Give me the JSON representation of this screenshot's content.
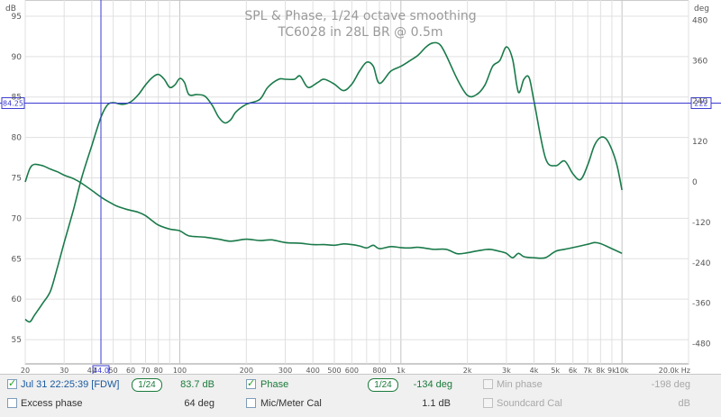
{
  "chart_data": {
    "type": "line",
    "title": "SPL & Phase, 1/24 octave smoothing",
    "subtitle": "TC6028 in 28L BR @ 0.5m",
    "x_scale": "log",
    "xlim": [
      20,
      20000
    ],
    "x_unit": "Hz",
    "left_axis": {
      "label": "dB",
      "ylim": [
        52,
        97
      ],
      "ticks": [
        55,
        60,
        65,
        70,
        75,
        80,
        85,
        90,
        95
      ]
    },
    "right_axis": {
      "label": "deg",
      "ylim": [
        -540,
        540
      ],
      "ticks": [
        480,
        360,
        240,
        120,
        0,
        -120,
        -240,
        -360,
        -480
      ]
    },
    "x_ticks": [
      {
        "v": 20,
        "label": "20"
      },
      {
        "v": 30,
        "label": "30"
      },
      {
        "v": 40,
        "label": "40"
      },
      {
        "v": 50,
        "label": "50"
      },
      {
        "v": 60,
        "label": "60"
      },
      {
        "v": 70,
        "label": "70"
      },
      {
        "v": 80,
        "label": "80"
      },
      {
        "v": 100,
        "label": "100"
      },
      {
        "v": 200,
        "label": "200"
      },
      {
        "v": 300,
        "label": "300"
      },
      {
        "v": 400,
        "label": "400"
      },
      {
        "v": 500,
        "label": "500"
      },
      {
        "v": 600,
        "label": "600"
      },
      {
        "v": 800,
        "label": "800"
      },
      {
        "v": 1000,
        "label": "1k"
      },
      {
        "v": 2000,
        "label": "2k"
      },
      {
        "v": 3000,
        "label": "3k"
      },
      {
        "v": 4000,
        "label": "4k"
      },
      {
        "v": 5000,
        "label": "5k"
      },
      {
        "v": 6000,
        "label": "6k"
      },
      {
        "v": 7000,
        "label": "7k"
      },
      {
        "v": 8000,
        "label": "8k"
      },
      {
        "v": 9000,
        "label": "9k"
      },
      {
        "v": 10000,
        "label": "10k"
      },
      {
        "v": 20000,
        "label": "20.0k Hz"
      }
    ],
    "cursor": {
      "x": 44.0,
      "x_label": "44.0",
      "y_db": 84.25,
      "y_label": "84.25",
      "right_label": "222"
    },
    "grid": true,
    "series": [
      {
        "color": "#1a7a4a",
        "axis": "left",
        "points": [
          [
            20,
            57.5
          ],
          [
            21,
            57.2
          ],
          [
            22,
            58
          ],
          [
            24,
            59.5
          ],
          [
            26,
            61
          ],
          [
            28,
            64
          ],
          [
            30,
            67
          ],
          [
            33,
            71
          ],
          [
            36,
            75
          ],
          [
            40,
            79
          ],
          [
            44,
            82.5
          ],
          [
            47,
            84
          ],
          [
            50,
            84.3
          ],
          [
            55,
            84.1
          ],
          [
            60,
            84.4
          ],
          [
            65,
            85.3
          ],
          [
            70,
            86.5
          ],
          [
            75,
            87.4
          ],
          [
            80,
            87.8
          ],
          [
            85,
            87.2
          ],
          [
            90,
            86.2
          ],
          [
            95,
            86.5
          ],
          [
            100,
            87.3
          ],
          [
            105,
            86.8
          ],
          [
            110,
            85.3
          ],
          [
            120,
            85.3
          ],
          [
            130,
            85.1
          ],
          [
            140,
            84
          ],
          [
            150,
            82.5
          ],
          [
            160,
            81.8
          ],
          [
            170,
            82.2
          ],
          [
            180,
            83.2
          ],
          [
            200,
            84.1
          ],
          [
            230,
            84.7
          ],
          [
            250,
            86.2
          ],
          [
            280,
            87.2
          ],
          [
            300,
            87.2
          ],
          [
            330,
            87.2
          ],
          [
            350,
            87.6
          ],
          [
            380,
            86.2
          ],
          [
            420,
            86.8
          ],
          [
            450,
            87.2
          ],
          [
            500,
            86.6
          ],
          [
            550,
            85.8
          ],
          [
            600,
            86.6
          ],
          [
            650,
            88.2
          ],
          [
            700,
            89.3
          ],
          [
            750,
            88.8
          ],
          [
            800,
            86.7
          ],
          [
            900,
            88.2
          ],
          [
            1000,
            88.8
          ],
          [
            1100,
            89.5
          ],
          [
            1200,
            90.2
          ],
          [
            1300,
            91.2
          ],
          [
            1400,
            91.7
          ],
          [
            1500,
            91.5
          ],
          [
            1600,
            90.2
          ],
          [
            1800,
            87.2
          ],
          [
            2000,
            85.2
          ],
          [
            2200,
            85.3
          ],
          [
            2400,
            86.5
          ],
          [
            2600,
            88.8
          ],
          [
            2800,
            89.5
          ],
          [
            3000,
            91.2
          ],
          [
            3200,
            89.7
          ],
          [
            3400,
            85.6
          ],
          [
            3600,
            87.2
          ],
          [
            3800,
            87.4
          ],
          [
            4000,
            84.5
          ],
          [
            4500,
            77.5
          ],
          [
            5000,
            76.5
          ],
          [
            5500,
            77.1
          ],
          [
            6000,
            75.5
          ],
          [
            6500,
            74.8
          ],
          [
            7000,
            76.6
          ],
          [
            7500,
            79
          ],
          [
            8000,
            80
          ],
          [
            8500,
            79.8
          ],
          [
            9000,
            78.5
          ],
          [
            9500,
            76.5
          ],
          [
            10000,
            73.5
          ]
        ]
      },
      {
        "color": "#1a7a4a",
        "axis": "right",
        "points": [
          [
            20,
            0
          ],
          [
            21,
            40
          ],
          [
            22,
            52
          ],
          [
            24,
            48
          ],
          [
            26,
            38
          ],
          [
            28,
            30
          ],
          [
            30,
            20
          ],
          [
            33,
            10
          ],
          [
            36,
            -4
          ],
          [
            40,
            -25
          ],
          [
            44,
            -45
          ],
          [
            48,
            -60
          ],
          [
            52,
            -72
          ],
          [
            58,
            -82
          ],
          [
            65,
            -90
          ],
          [
            70,
            -100
          ],
          [
            75,
            -115
          ],
          [
            80,
            -128
          ],
          [
            90,
            -140
          ],
          [
            100,
            -145
          ],
          [
            110,
            -160
          ],
          [
            130,
            -164
          ],
          [
            150,
            -170
          ],
          [
            170,
            -176
          ],
          [
            200,
            -170
          ],
          [
            230,
            -174
          ],
          [
            260,
            -172
          ],
          [
            300,
            -180
          ],
          [
            350,
            -182
          ],
          [
            400,
            -186
          ],
          [
            450,
            -186
          ],
          [
            500,
            -188
          ],
          [
            550,
            -184
          ],
          [
            600,
            -186
          ],
          [
            650,
            -190
          ],
          [
            700,
            -196
          ],
          [
            750,
            -188
          ],
          [
            800,
            -198
          ],
          [
            900,
            -192
          ],
          [
            1000,
            -195
          ],
          [
            1100,
            -196
          ],
          [
            1200,
            -194
          ],
          [
            1400,
            -200
          ],
          [
            1600,
            -200
          ],
          [
            1800,
            -213
          ],
          [
            2000,
            -210
          ],
          [
            2200,
            -205
          ],
          [
            2500,
            -200
          ],
          [
            2800,
            -206
          ],
          [
            3000,
            -212
          ],
          [
            3200,
            -225
          ],
          [
            3400,
            -212
          ],
          [
            3600,
            -222
          ],
          [
            4000,
            -225
          ],
          [
            4500,
            -225
          ],
          [
            5000,
            -206
          ],
          [
            5500,
            -200
          ],
          [
            6000,
            -195
          ],
          [
            7000,
            -185
          ],
          [
            7500,
            -180
          ],
          [
            8000,
            -183
          ],
          [
            9000,
            -198
          ],
          [
            10000,
            -212
          ]
        ]
      }
    ]
  },
  "legend": {
    "row1": {
      "spl_label": "Jul 31 22:25:39 [FDW]",
      "spl_smoothing": "1/24",
      "spl_value": "83.7 dB",
      "phase_label": "Phase",
      "phase_smoothing": "1/24",
      "phase_value": "-134 deg",
      "minphase_label": "Min phase",
      "minphase_value": "-198 deg"
    },
    "row2": {
      "excess_label": "Excess phase",
      "excess_value": "64 deg",
      "mic_label": "Mic/Meter Cal",
      "mic_value": "1.1 dB",
      "sc_label": "Soundcard Cal",
      "sc_value": "dB"
    }
  }
}
